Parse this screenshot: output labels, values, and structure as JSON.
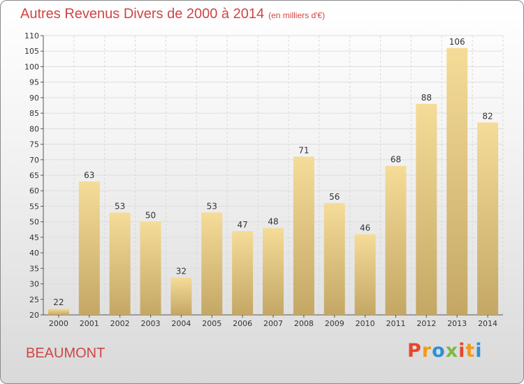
{
  "header": {
    "title": "Autres Revenus Divers de 2000 à 2014",
    "unit": "(en milliers d'€)"
  },
  "footer": {
    "city": "BEAUMONT",
    "logo": [
      "P",
      "r",
      "o",
      "x",
      "i",
      "t",
      "i"
    ]
  },
  "colors": {
    "title": "#d04545",
    "bar_light": "#f5dc98",
    "bar_dark": "#c4a765",
    "logo": [
      "#e8452c",
      "#f39a1c",
      "#2f8fd3",
      "#7fba3a",
      "#e8452c",
      "#f39a1c",
      "#2f8fd3"
    ]
  },
  "chart_data": {
    "type": "bar",
    "title": "Autres Revenus Divers de 2000 à 2014",
    "xlabel": "",
    "ylabel": "",
    "categories": [
      "2000",
      "2001",
      "2002",
      "2003",
      "2004",
      "2005",
      "2006",
      "2007",
      "2008",
      "2009",
      "2010",
      "2011",
      "2012",
      "2013",
      "2014"
    ],
    "values": [
      22,
      63,
      53,
      50,
      32,
      53,
      47,
      48,
      71,
      56,
      46,
      68,
      88,
      106,
      82
    ],
    "ylim": [
      20,
      110
    ],
    "yticks": [
      20,
      25,
      30,
      35,
      40,
      45,
      50,
      55,
      60,
      65,
      70,
      75,
      80,
      85,
      90,
      95,
      100,
      105,
      110
    ],
    "grid": true,
    "legend": "none"
  }
}
